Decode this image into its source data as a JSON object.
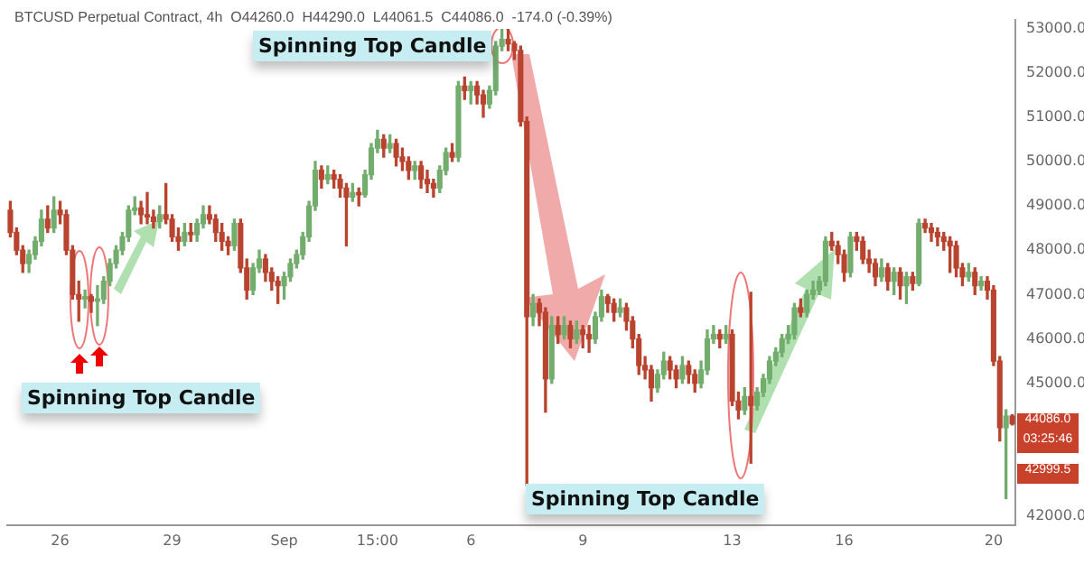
{
  "chart_data": {
    "type": "candlestick",
    "title": "BTCUSD Perpetual Contract, 4h  O44260.0  H44290.0  L44061.5  C44086.0  -174.0 (-0.39%)",
    "categories": [
      null,
      null,
      null,
      null,
      null,
      null,
      null,
      null,
      "26",
      null,
      null,
      null,
      null,
      null,
      null,
      null,
      null,
      null,
      null,
      null,
      null,
      null,
      null,
      null,
      null,
      null,
      "29",
      null,
      null,
      null,
      null,
      null,
      null,
      null,
      null,
      null,
      null,
      null,
      null,
      null,
      null,
      null,
      null,
      null,
      "Sep",
      null,
      null,
      null,
      null,
      null,
      null,
      null,
      null,
      null,
      null,
      null,
      null,
      null,
      null,
      "15:00",
      null,
      null,
      null,
      null,
      null,
      null,
      null,
      null,
      null,
      null,
      null,
      null,
      null,
      null,
      "6",
      null,
      null,
      null,
      null,
      null,
      null,
      null,
      null,
      null,
      null,
      null,
      null,
      null,
      null,
      null,
      null,
      null,
      "9",
      null,
      null,
      null,
      null,
      null,
      null,
      null,
      null,
      null,
      null,
      null,
      null,
      null,
      null,
      null,
      null,
      null,
      null,
      null,
      null,
      null,
      null,
      null,
      "13",
      null,
      null,
      null,
      null,
      null,
      null,
      null,
      null,
      null,
      null,
      null,
      null,
      null,
      null,
      null,
      null,
      null,
      "16",
      null,
      null,
      null,
      null,
      null,
      null,
      null,
      null,
      null,
      null,
      null,
      null,
      null,
      null,
      null,
      null,
      null,
      null,
      null,
      null,
      null,
      null,
      null,
      "20",
      null,
      null,
      null
    ],
    "ohlc": [
      [
        48900,
        49100,
        48300,
        48400
      ],
      [
        48400,
        48500,
        47900,
        48000
      ],
      [
        48000,
        48100,
        47500,
        47700
      ],
      [
        47700,
        48000,
        47500,
        47900
      ],
      [
        47900,
        48300,
        47800,
        48200
      ],
      [
        48200,
        48900,
        48100,
        48700
      ],
      [
        48700,
        49000,
        48400,
        48500
      ],
      [
        48500,
        49200,
        48400,
        48900
      ],
      [
        48900,
        49100,
        48600,
        48800
      ],
      [
        48800,
        48900,
        47900,
        48000
      ],
      [
        48000,
        48100,
        46900,
        47000
      ],
      [
        47000,
        47300,
        46400,
        46900
      ],
      [
        46900,
        47100,
        46700,
        46950
      ],
      [
        46950,
        47000,
        46600,
        46850
      ],
      [
        46850,
        47200,
        46300,
        46900
      ],
      [
        46900,
        47400,
        46800,
        47300
      ],
      [
        47300,
        47800,
        47200,
        47700
      ],
      [
        47700,
        48100,
        47600,
        48000
      ],
      [
        48000,
        48400,
        47900,
        48300
      ],
      [
        48300,
        49000,
        48200,
        48900
      ],
      [
        48900,
        49200,
        48800,
        48950
      ],
      [
        48950,
        49100,
        48600,
        48800
      ],
      [
        48800,
        49300,
        48600,
        48750
      ],
      [
        48750,
        48900,
        48500,
        48650
      ],
      [
        48650,
        49000,
        48500,
        48800
      ],
      [
        48800,
        49500,
        48600,
        48700
      ],
      [
        48700,
        48800,
        48200,
        48300
      ],
      [
        48300,
        48500,
        48000,
        48200
      ],
      [
        48200,
        48600,
        48100,
        48400
      ],
      [
        48400,
        48600,
        48200,
        48350
      ],
      [
        48350,
        48700,
        48200,
        48600
      ],
      [
        48600,
        49000,
        48500,
        48800
      ],
      [
        48800,
        49000,
        48600,
        48700
      ],
      [
        48700,
        48800,
        48200,
        48400
      ],
      [
        48400,
        48600,
        48000,
        48200
      ],
      [
        48200,
        48300,
        47900,
        48100
      ],
      [
        48100,
        48700,
        48000,
        48600
      ],
      [
        48600,
        48700,
        47500,
        47600
      ],
      [
        47600,
        47800,
        46900,
        47100
      ],
      [
        47100,
        47700,
        47000,
        47600
      ],
      [
        47600,
        48000,
        47500,
        47800
      ],
      [
        47800,
        47900,
        47300,
        47500
      ],
      [
        47500,
        47600,
        47100,
        47300
      ],
      [
        47300,
        47400,
        46800,
        47200
      ],
      [
        47200,
        47500,
        46900,
        47400
      ],
      [
        47400,
        47800,
        47300,
        47700
      ],
      [
        47700,
        48000,
        47600,
        47900
      ],
      [
        47900,
        48400,
        47800,
        48300
      ],
      [
        48300,
        49100,
        48200,
        49000
      ],
      [
        49000,
        50000,
        48900,
        49800
      ],
      [
        49800,
        49900,
        49400,
        49600
      ],
      [
        49600,
        49900,
        49500,
        49700
      ],
      [
        49700,
        49800,
        49400,
        49600
      ],
      [
        49600,
        49700,
        49200,
        49400
      ],
      [
        49400,
        49500,
        48100,
        49200
      ],
      [
        49200,
        49500,
        49100,
        49300
      ],
      [
        49300,
        49400,
        49000,
        49250
      ],
      [
        49250,
        49800,
        49200,
        49700
      ],
      [
        49700,
        50400,
        49600,
        50300
      ],
      [
        50300,
        50700,
        50200,
        50500
      ],
      [
        50500,
        50600,
        50100,
        50300
      ],
      [
        50300,
        50600,
        50200,
        50400
      ],
      [
        50400,
        50500,
        49900,
        50100
      ],
      [
        50100,
        50300,
        49800,
        50000
      ],
      [
        50000,
        50100,
        49600,
        49800
      ],
      [
        49800,
        50000,
        49600,
        49900
      ],
      [
        49900,
        50000,
        49400,
        49600
      ],
      [
        49600,
        49800,
        49300,
        49500
      ],
      [
        49500,
        49600,
        49200,
        49400
      ],
      [
        49400,
        49900,
        49300,
        49800
      ],
      [
        49800,
        50300,
        49700,
        50200
      ],
      [
        50200,
        50400,
        50000,
        50100
      ],
      [
        50100,
        51800,
        50000,
        51700
      ],
      [
        51700,
        51900,
        51400,
        51600
      ],
      [
        51600,
        51800,
        51300,
        51700
      ],
      [
        51700,
        51800,
        51300,
        51500
      ],
      [
        51500,
        51600,
        51000,
        51300
      ],
      [
        51300,
        51700,
        51200,
        51600
      ],
      [
        51600,
        52700,
        51500,
        52600
      ],
      [
        52600,
        53000,
        52500,
        52750
      ],
      [
        52750,
        53000,
        52500,
        52650
      ],
      [
        52650,
        52700,
        52300,
        52500
      ],
      [
        52500,
        52600,
        50800,
        50900
      ],
      [
        50900,
        51000,
        42700,
        46500
      ],
      [
        46500,
        47000,
        46300,
        46800
      ],
      [
        46800,
        46900,
        46300,
        46600
      ],
      [
        46600,
        46700,
        44350,
        45100
      ],
      [
        45100,
        46500,
        45000,
        46300
      ],
      [
        46300,
        46500,
        45900,
        46100
      ],
      [
        46100,
        46500,
        46000,
        46300
      ],
      [
        46300,
        46400,
        45800,
        46000
      ],
      [
        46000,
        46400,
        45900,
        46200
      ],
      [
        46200,
        46300,
        45800,
        46100
      ],
      [
        46100,
        46300,
        45700,
        46000
      ],
      [
        46000,
        46600,
        45900,
        46500
      ],
      [
        46500,
        47100,
        46400,
        46950
      ],
      [
        46950,
        47000,
        46600,
        46800
      ],
      [
        46800,
        46900,
        46400,
        46600
      ],
      [
        46600,
        46900,
        46500,
        46700
      ],
      [
        46700,
        46800,
        46200,
        46400
      ],
      [
        46400,
        46500,
        45800,
        46000
      ],
      [
        46000,
        46100,
        45200,
        45400
      ],
      [
        45400,
        45600,
        45100,
        45300
      ],
      [
        45300,
        45400,
        44600,
        44900
      ],
      [
        44900,
        45300,
        44800,
        45200
      ],
      [
        45200,
        45700,
        45100,
        45500
      ],
      [
        45500,
        45600,
        45100,
        45300
      ],
      [
        45300,
        45400,
        44900,
        45100
      ],
      [
        45100,
        45600,
        45000,
        45400
      ],
      [
        45400,
        45500,
        45000,
        45200
      ],
      [
        45200,
        45300,
        44800,
        45000
      ],
      [
        45000,
        45500,
        44900,
        45300
      ],
      [
        45300,
        46200,
        45200,
        46000
      ],
      [
        46000,
        46300,
        45900,
        46100
      ],
      [
        46100,
        46200,
        45800,
        46000
      ],
      [
        46000,
        46300,
        45900,
        46100
      ],
      [
        46100,
        46200,
        44500,
        44600
      ],
      [
        44600,
        44800,
        44200,
        44400
      ],
      [
        44400,
        44900,
        44300,
        44700
      ],
      [
        44700,
        47050,
        43200,
        44500
      ],
      [
        44500,
        44900,
        44400,
        44800
      ],
      [
        44800,
        45200,
        44700,
        45100
      ],
      [
        45100,
        45600,
        45000,
        45500
      ],
      [
        45500,
        45800,
        45400,
        45700
      ],
      [
        45700,
        46100,
        45600,
        46000
      ],
      [
        46000,
        46300,
        45900,
        46100
      ],
      [
        46100,
        46800,
        46000,
        46700
      ],
      [
        46700,
        46900,
        46500,
        46600
      ],
      [
        46600,
        47100,
        46500,
        47000
      ],
      [
        47000,
        47300,
        46900,
        47100
      ],
      [
        47100,
        47400,
        47000,
        47300
      ],
      [
        47300,
        48300,
        47200,
        48200
      ],
      [
        48200,
        48400,
        48000,
        48100
      ],
      [
        48100,
        48200,
        47700,
        47900
      ],
      [
        47900,
        48000,
        47300,
        47500
      ],
      [
        47500,
        48400,
        47400,
        48300
      ],
      [
        48300,
        48400,
        48000,
        48200
      ],
      [
        48200,
        48300,
        47700,
        47800
      ],
      [
        47800,
        48000,
        47500,
        47700
      ],
      [
        47700,
        47800,
        47200,
        47400
      ],
      [
        47400,
        47800,
        47300,
        47600
      ],
      [
        47600,
        47700,
        47100,
        47300
      ],
      [
        47300,
        47600,
        47000,
        47500
      ],
      [
        47500,
        47600,
        46900,
        47200
      ],
      [
        47200,
        47500,
        46800,
        47400
      ],
      [
        47400,
        47500,
        47100,
        47250
      ],
      [
        47250,
        48700,
        47200,
        48600
      ],
      [
        48600,
        48700,
        48400,
        48500
      ],
      [
        48500,
        48600,
        48200,
        48400
      ],
      [
        48400,
        48500,
        48100,
        48300
      ],
      [
        48300,
        48400,
        48000,
        48200
      ],
      [
        48200,
        48300,
        47500,
        48100
      ],
      [
        48100,
        48200,
        47400,
        47600
      ],
      [
        47600,
        47700,
        47200,
        47400
      ],
      [
        47400,
        47700,
        47300,
        47500
      ],
      [
        47500,
        47600,
        47000,
        47200
      ],
      [
        47200,
        47400,
        47100,
        47300
      ],
      [
        47300,
        47400,
        46900,
        47100
      ],
      [
        47100,
        47200,
        45400,
        45500
      ],
      [
        45500,
        45600,
        43700,
        44000
      ],
      [
        44000,
        44400,
        42400,
        44260
      ],
      [
        44260,
        44290,
        44061.5,
        44086
      ]
    ],
    "colors": [
      "#b8432f",
      "#b8432f",
      "#b8432f",
      "#72ad6e",
      "#72ad6e",
      "#72ad6e",
      "#b8432f",
      "#72ad6e",
      "#b8432f",
      "#b8432f",
      "#b8432f",
      "#b8432f",
      "#72ad6e",
      "#b8432f",
      "#72ad6e",
      "#72ad6e",
      "#72ad6e",
      "#72ad6e",
      "#72ad6e",
      "#72ad6e",
      "#72ad6e",
      "#b8432f",
      "#b8432f",
      "#b8432f",
      "#72ad6e",
      "#b8432f",
      "#b8432f",
      "#b8432f",
      "#72ad6e",
      "#b8432f",
      "#72ad6e",
      "#72ad6e",
      "#b8432f",
      "#b8432f",
      "#b8432f",
      "#b8432f",
      "#72ad6e",
      "#b8432f",
      "#b8432f",
      "#72ad6e",
      "#72ad6e",
      "#b8432f",
      "#b8432f",
      "#b8432f",
      "#72ad6e",
      "#72ad6e",
      "#72ad6e",
      "#72ad6e",
      "#72ad6e",
      "#72ad6e",
      "#b8432f",
      "#72ad6e",
      "#b8432f",
      "#b8432f",
      "#b8432f",
      "#72ad6e",
      "#b8432f",
      "#72ad6e",
      "#72ad6e",
      "#72ad6e",
      "#b8432f",
      "#72ad6e",
      "#b8432f",
      "#b8432f",
      "#b8432f",
      "#72ad6e",
      "#b8432f",
      "#b8432f",
      "#b8432f",
      "#72ad6e",
      "#72ad6e",
      "#b8432f",
      "#72ad6e",
      "#b8432f",
      "#72ad6e",
      "#b8432f",
      "#b8432f",
      "#72ad6e",
      "#72ad6e",
      "#72ad6e",
      "#b8432f",
      "#b8432f",
      "#b8432f",
      "#b8432f",
      "#72ad6e",
      "#b8432f",
      "#b8432f",
      "#72ad6e",
      "#b8432f",
      "#72ad6e",
      "#b8432f",
      "#72ad6e",
      "#b8432f",
      "#b8432f",
      "#72ad6e",
      "#72ad6e",
      "#b8432f",
      "#b8432f",
      "#72ad6e",
      "#b8432f",
      "#b8432f",
      "#b8432f",
      "#b8432f",
      "#b8432f",
      "#72ad6e",
      "#72ad6e",
      "#b8432f",
      "#b8432f",
      "#72ad6e",
      "#b8432f",
      "#b8432f",
      "#72ad6e",
      "#72ad6e",
      "#72ad6e",
      "#b8432f",
      "#72ad6e",
      "#b8432f",
      "#b8432f",
      "#72ad6e",
      "#b8432f",
      "#72ad6e",
      "#72ad6e",
      "#72ad6e",
      "#72ad6e",
      "#72ad6e",
      "#72ad6e",
      "#72ad6e",
      "#b8432f",
      "#72ad6e",
      "#72ad6e",
      "#72ad6e",
      "#72ad6e",
      "#b8432f",
      "#b8432f",
      "#b8432f",
      "#72ad6e",
      "#b8432f",
      "#b8432f",
      "#b8432f",
      "#b8432f",
      "#72ad6e",
      "#b8432f",
      "#72ad6e",
      "#b8432f",
      "#72ad6e",
      "#b8432f",
      "#72ad6e",
      "#b8432f",
      "#b8432f",
      "#b8432f",
      "#b8432f",
      "#b8432f",
      "#b8432f",
      "#b8432f",
      "#72ad6e",
      "#b8432f",
      "#72ad6e",
      "#b8432f",
      "#b8432f",
      "#b8432f",
      "#72ad6e",
      "#b8432f"
    ],
    "ylim": [
      41800,
      53200
    ],
    "yticks": [
      {
        "value": 42000,
        "label": "42000.0"
      },
      {
        "value": 45000,
        "label": "45000.0"
      },
      {
        "value": 46000,
        "label": "46000.0"
      },
      {
        "value": 47000,
        "label": "47000.0"
      },
      {
        "value": 48000,
        "label": "48000.0"
      },
      {
        "value": 49000,
        "label": "49000.0"
      },
      {
        "value": 50000,
        "label": "50000.0"
      },
      {
        "value": 51000,
        "label": "51000.0"
      },
      {
        "value": 52000,
        "label": "52000.0"
      },
      {
        "value": 53000,
        "label": "53000.0"
      }
    ],
    "annotations": [
      "Spinning Top Candle",
      "Spinning Top Candle",
      "Spinning Top Candle",
      "44086.0",
      "03:25:46",
      "42999.5"
    ]
  }
}
